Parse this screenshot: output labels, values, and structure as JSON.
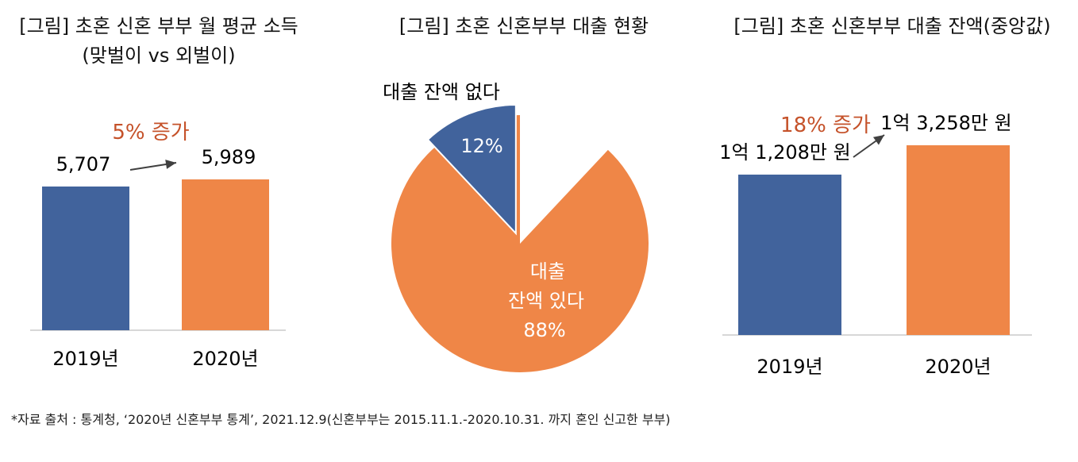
{
  "colors": {
    "blue": "#41639C",
    "orange": "#EF8647",
    "accent_text": "#C5522A",
    "arrow": "#404040",
    "axis": "#BFBFBF"
  },
  "chart_data": [
    {
      "type": "bar",
      "title": "[그림] 초혼 신혼 부부 월 평균 소득",
      "subtitle": "(맞벌이 vs 외벌이)",
      "categories": [
        "2019년",
        "2020년"
      ],
      "values": [
        5707,
        5989
      ],
      "data_labels": [
        "5,707",
        "5,989"
      ],
      "annotation": "5% 증가"
    },
    {
      "type": "pie",
      "title": "[그림] 초혼 신혼부부 대출 현황",
      "slices": [
        {
          "label": "대출 잔액 없다",
          "value": 12,
          "value_label": "12%"
        },
        {
          "label_lines": [
            "대출",
            "잔액 있다"
          ],
          "value": 88,
          "value_label": "88%"
        }
      ]
    },
    {
      "type": "bar",
      "title": "[그림] 초혼 신혼부부 대출 잔액(중앙값)",
      "categories": [
        "2019년",
        "2020년"
      ],
      "values": [
        11208,
        13258
      ],
      "data_labels": [
        "1억 1,208만 원",
        "1억 3,258만 원"
      ],
      "annotation": "18% 증가"
    }
  ],
  "footer": {
    "source": "*자료 출처 : 통계청, ‘2020년 신혼부부 통계’, 2021.12.9(신혼부부는 2015.11.1.-2020.10.31. 까지 혼인 신고한 부부)"
  }
}
